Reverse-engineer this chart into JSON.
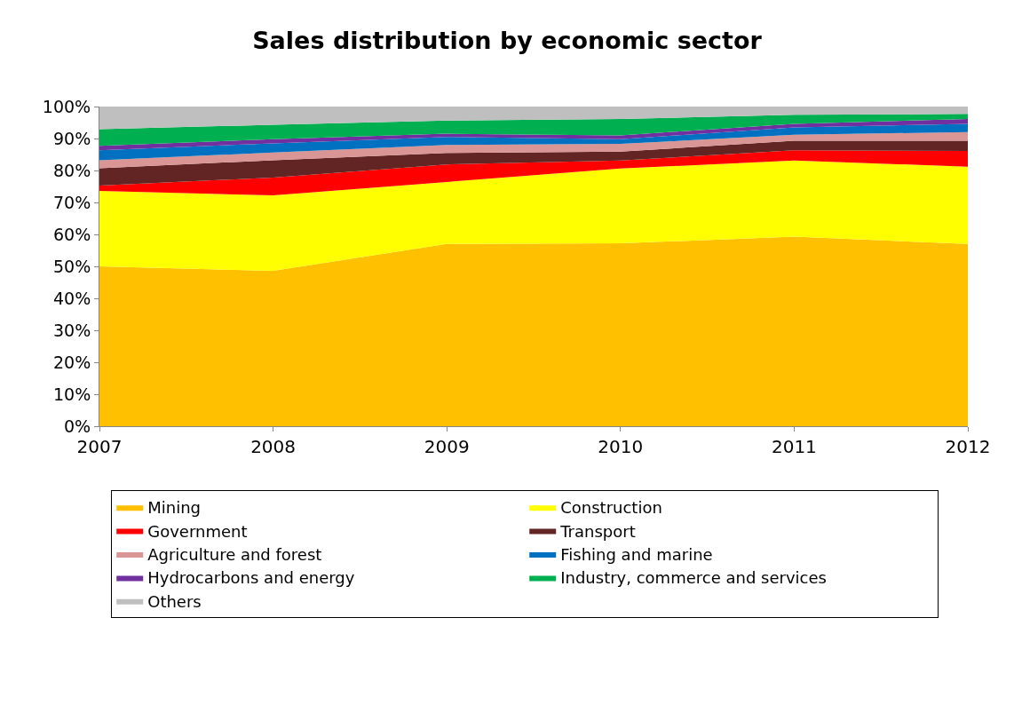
{
  "chart_data": {
    "type": "area",
    "stacked": true,
    "title": "Sales distribution by economic sector",
    "x": [
      2007,
      2008,
      2009,
      2010,
      2011,
      2012
    ],
    "xlim": [
      2007,
      2012
    ],
    "xticks": [
      2007,
      2008,
      2009,
      2010,
      2011,
      2012
    ],
    "ylim": [
      0,
      100
    ],
    "yticks": [
      {
        "value": 0,
        "label": "0%"
      },
      {
        "value": 10,
        "label": "10%"
      },
      {
        "value": 20,
        "label": "20%"
      },
      {
        "value": 30,
        "label": "30%"
      },
      {
        "value": 40,
        "label": "40%"
      },
      {
        "value": 50,
        "label": "50%"
      },
      {
        "value": 60,
        "label": "60%"
      },
      {
        "value": 70,
        "label": "70%"
      },
      {
        "value": 80,
        "label": "80%"
      },
      {
        "value": 90,
        "label": "90%"
      },
      {
        "value": 100,
        "label": "100%"
      }
    ],
    "legend": "bottom",
    "series": [
      {
        "name": "Mining",
        "color": "#ffc000",
        "values": [
          50,
          48.6,
          57,
          57.2,
          59.3,
          57
        ]
      },
      {
        "name": "Construction",
        "color": "#ffff00",
        "values": [
          23.6,
          23.6,
          19.4,
          23.4,
          23.8,
          24.2
        ]
      },
      {
        "name": "Government",
        "color": "#ff0000",
        "values": [
          1.7,
          5.6,
          5.5,
          2.5,
          3.2,
          4.9
        ]
      },
      {
        "name": "Transport",
        "color": "#632523",
        "values": [
          5.4,
          5.4,
          3.6,
          2.8,
          3.0,
          3.2
        ]
      },
      {
        "name": "Agriculture and forest",
        "color": "#d99694",
        "values": [
          2.5,
          2.4,
          2.5,
          2.4,
          1.9,
          2.7
        ]
      },
      {
        "name": "Fishing and marine",
        "color": "#0070c0",
        "values": [
          3.1,
          2.9,
          2.5,
          1.5,
          2.3,
          2.6
        ]
      },
      {
        "name": "Hydrocarbons and energy",
        "color": "#7030a0",
        "values": [
          1.4,
          1.3,
          1.0,
          1.2,
          1.1,
          1.5
        ]
      },
      {
        "name": "Industry, commerce and services",
        "color": "#00b050",
        "values": [
          5.2,
          4.5,
          4.1,
          5.1,
          2.8,
          1.6
        ]
      },
      {
        "name": "Others",
        "color": "#bfbfbf",
        "values": [
          7.1,
          5.7,
          4.4,
          3.9,
          2.6,
          2.3
        ]
      }
    ]
  }
}
